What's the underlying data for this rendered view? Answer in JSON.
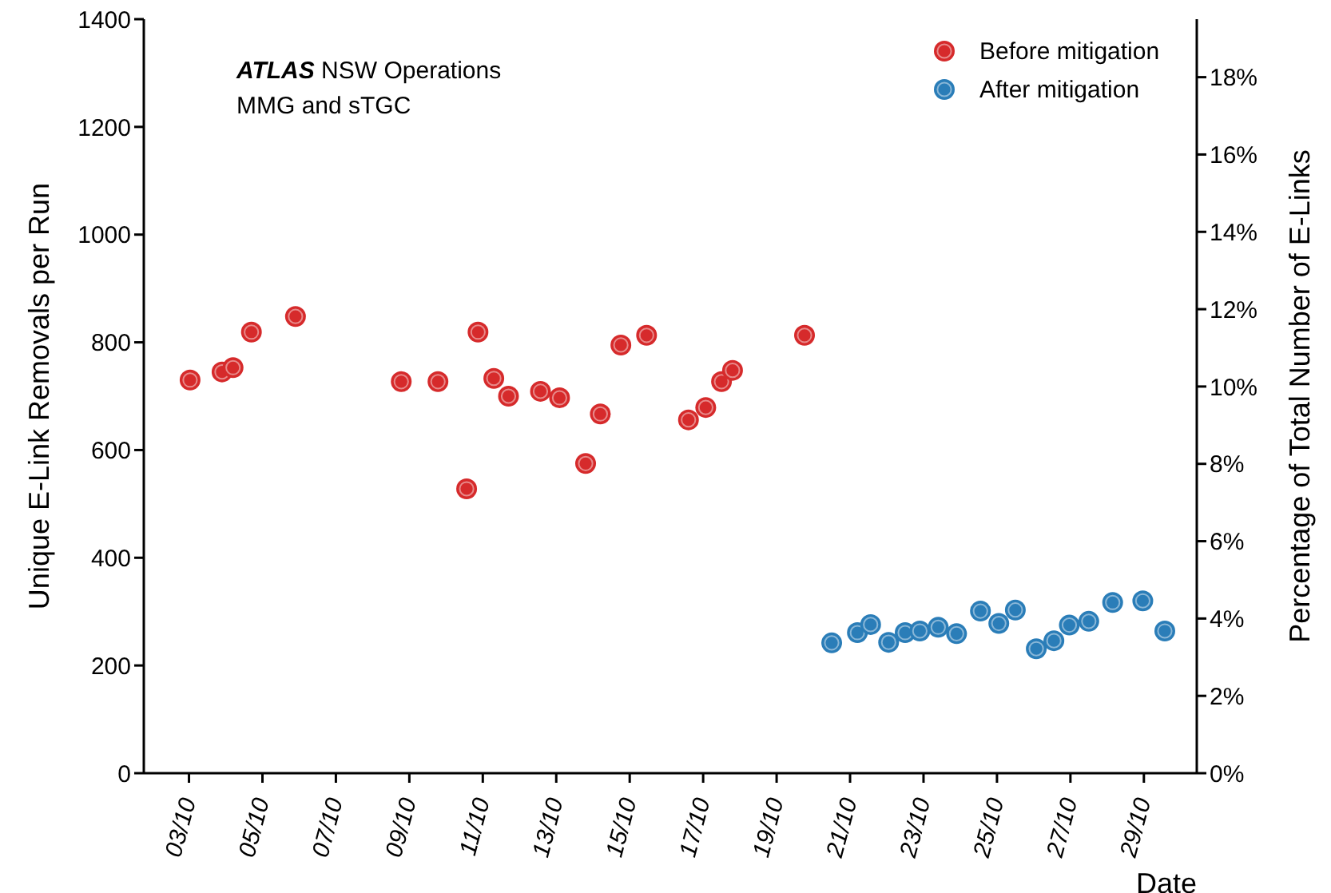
{
  "chart_data": {
    "type": "scatter",
    "xlabel": "Date",
    "ylabel": "Unique E-Link Removals per Run",
    "y2label": "Percentage of Total Number of E-Links",
    "annotations": [
      "ATLAS NSW Operations",
      "MMG and sTGC"
    ],
    "xlim": [
      "--10-01T18:29",
      "--10-30T10:34"
    ],
    "xticks": [
      {
        "value": "--10-03",
        "label": "03/10"
      },
      {
        "value": "--10-05",
        "label": "05/10"
      },
      {
        "value": "--10-07",
        "label": "07/10"
      },
      {
        "value": "--10-09",
        "label": "09/10"
      },
      {
        "value": "--10-11",
        "label": "11/10"
      },
      {
        "value": "--10-13",
        "label": "13/10"
      },
      {
        "value": "--10-15",
        "label": "15/10"
      },
      {
        "value": "--10-17",
        "label": "17/10"
      },
      {
        "value": "--10-19",
        "label": "19/10"
      },
      {
        "value": "--10-21",
        "label": "21/10"
      },
      {
        "value": "--10-23",
        "label": "23/10"
      },
      {
        "value": "--10-25",
        "label": "25/10"
      },
      {
        "value": "--10-27",
        "label": "27/10"
      },
      {
        "value": "--10-29",
        "label": "29/10"
      }
    ],
    "ylim": [
      0,
      1400
    ],
    "yticks": [
      0,
      200,
      400,
      600,
      800,
      1000,
      1200,
      1400
    ],
    "y2lim": [
      0,
      19.5
    ],
    "y2ticks": [
      {
        "value": 0,
        "label": "0%"
      },
      {
        "value": 2,
        "label": "2%"
      },
      {
        "value": 4,
        "label": "4%"
      },
      {
        "value": 6,
        "label": "6%"
      },
      {
        "value": 8,
        "label": "8%"
      },
      {
        "value": 10,
        "label": "10%"
      },
      {
        "value": 12,
        "label": "12%"
      },
      {
        "value": 14,
        "label": "14%"
      },
      {
        "value": 16,
        "label": "16%"
      },
      {
        "value": 18,
        "label": "18%"
      }
    ],
    "grid": false,
    "legend": "top right",
    "marker": "circle",
    "series": [
      {
        "name": "Before mitigation",
        "color": "#d62a2b",
        "x": [
          "--10-03T00:43",
          "--10-03T21:36",
          "--10-04T04:48",
          "--10-04T16:48",
          "--10-05T21:36",
          "--10-08T18:43",
          "--10-09T18:43",
          "--10-10T13:26",
          "--10-10T20:53",
          "--10-11T07:12",
          "--10-11T16:48",
          "--10-12T13:41",
          "--10-13T02:10",
          "--10-13T19:12",
          "--10-14T04:48",
          "--10-14T18:14",
          "--10-15T11:02",
          "--10-16T14:24",
          "--10-17T01:41",
          "--10-17T12:00",
          "--10-17T19:12",
          "--10-19T18:14"
        ],
        "values": [
          730,
          745,
          753,
          819,
          848,
          727,
          727,
          528,
          819,
          733,
          700,
          709,
          697,
          575,
          667,
          795,
          813,
          656,
          679,
          727,
          748,
          813
        ]
      },
      {
        "name": "After mitigation",
        "color": "#2a7db8",
        "x": [
          "--10-20T12:00",
          "--10-21T04:48",
          "--10-21T13:26",
          "--10-22T01:12",
          "--10-22T12:00",
          "--10-22T21:36",
          "--10-23T09:36",
          "--10-23T21:36",
          "--10-24T13:12",
          "--10-25T01:12",
          "--10-25T12:00",
          "--10-26T01:41",
          "--10-26T13:12",
          "--10-26T23:17",
          "--10-27T12:00",
          "--10-28T03:36",
          "--10-28T23:17",
          "--10-29T13:41"
        ],
        "values": [
          242,
          261,
          276,
          243,
          261,
          264,
          271,
          259,
          301,
          278,
          303,
          231,
          246,
          275,
          282,
          317,
          320,
          264
        ]
      }
    ]
  }
}
